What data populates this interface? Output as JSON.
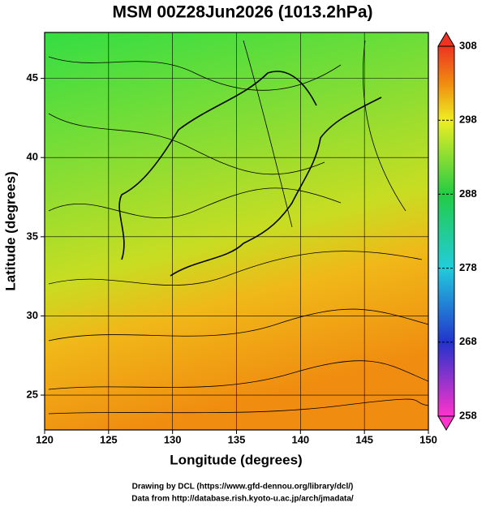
{
  "chart_data": {
    "type": "map",
    "title": "MSM 00Z28Jun2026 (1013.2hPa)",
    "x_label": "Longitude (degrees)",
    "y_label": "Latitude  (degrees)",
    "xlim": [
      120,
      150
    ],
    "xticks": [
      120,
      125,
      130,
      135,
      140,
      145,
      150
    ],
    "ylim": [
      22.8,
      47.9
    ],
    "yticks": [
      25,
      30,
      35,
      40,
      45
    ],
    "grid": true,
    "colorbar": {
      "lim": [
        258,
        308
      ],
      "ticks": [
        258,
        268,
        278,
        288,
        298,
        308
      ]
    }
  },
  "footer": [
    "Drawing by DCL (https://www.gfd-dennou.org/library/dcl/)",
    "Data from http://database.rish.kyoto-u.ac.jp/arch/jmadata/"
  ]
}
